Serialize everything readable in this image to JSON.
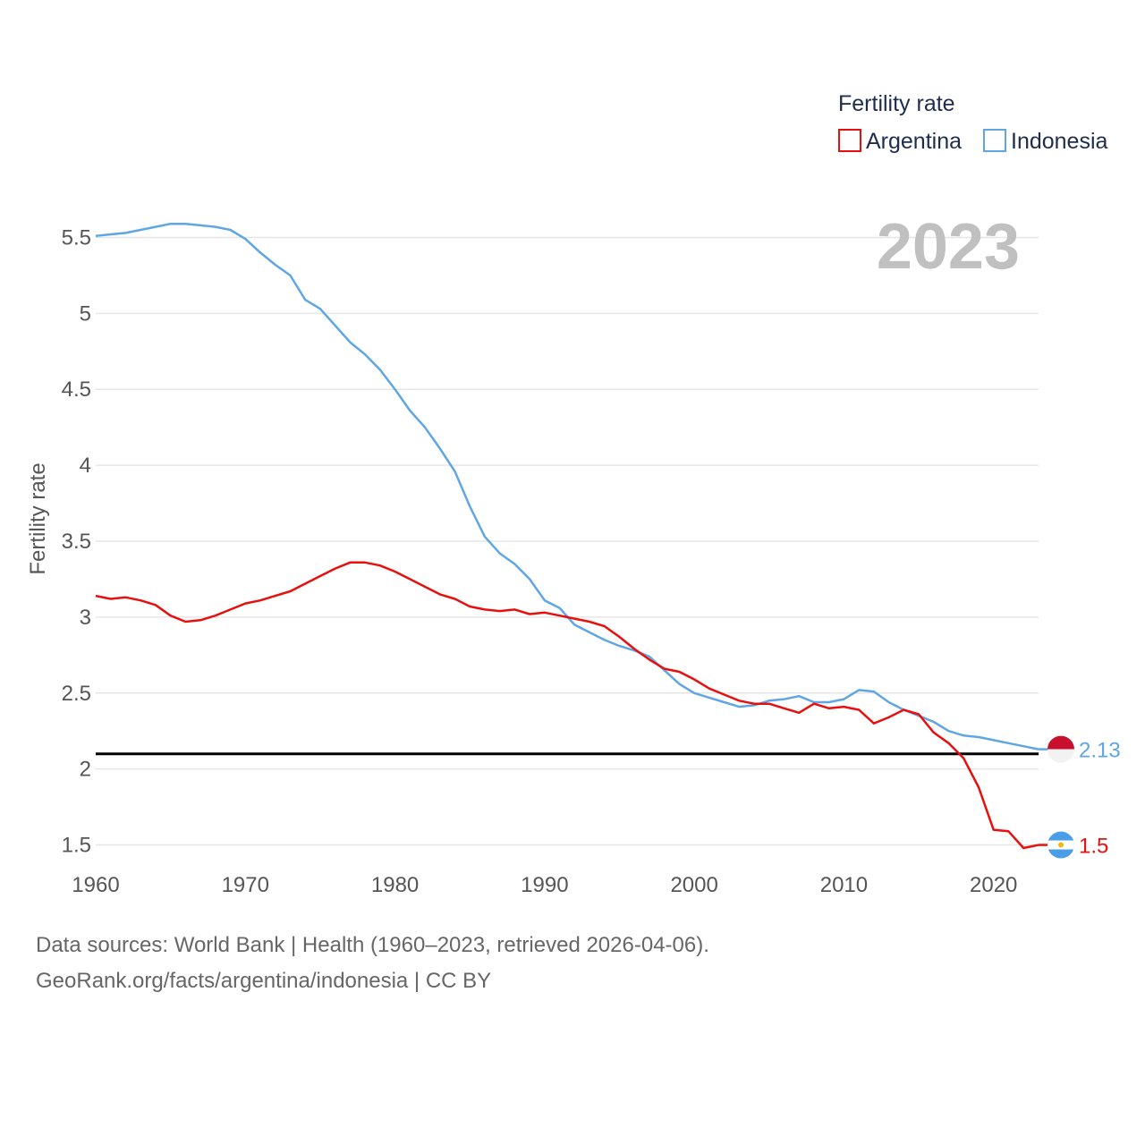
{
  "chart_data": {
    "type": "line",
    "ylabel": "Fertility rate",
    "xlabel": "",
    "xlim": [
      1960,
      2024.5
    ],
    "ylim": [
      1.25,
      5.75
    ],
    "x_ticks": [
      1960,
      1970,
      1980,
      1990,
      2000,
      2010,
      2020
    ],
    "y_ticks": [
      1.5,
      2,
      2.5,
      3,
      3.5,
      4,
      4.5,
      5,
      5.5
    ],
    "y_tick_labels": [
      "1.5",
      "2",
      "2.5",
      "3",
      "3.5",
      "4",
      "4.5",
      "5",
      "5.5"
    ],
    "grid": true,
    "legend": {
      "title": "Fertility rate",
      "position": "top-right"
    },
    "year_label": "2023",
    "reference_line": {
      "y": 2.1,
      "color": "#000000"
    },
    "x": [
      1960,
      1961,
      1962,
      1963,
      1964,
      1965,
      1966,
      1967,
      1968,
      1969,
      1970,
      1971,
      1972,
      1973,
      1974,
      1975,
      1976,
      1977,
      1978,
      1979,
      1980,
      1981,
      1982,
      1983,
      1984,
      1985,
      1986,
      1987,
      1988,
      1989,
      1990,
      1991,
      1992,
      1993,
      1994,
      1995,
      1996,
      1997,
      1998,
      1999,
      2000,
      2001,
      2002,
      2003,
      2004,
      2005,
      2006,
      2007,
      2008,
      2009,
      2010,
      2011,
      2012,
      2013,
      2014,
      2015,
      2016,
      2017,
      2018,
      2019,
      2020,
      2021,
      2022,
      2023
    ],
    "series": [
      {
        "name": "Argentina",
        "color": "#e8100f",
        "end_label": "1.5",
        "flag": "argentina-flag",
        "values": [
          3.14,
          3.12,
          3.13,
          3.11,
          3.08,
          3.01,
          2.97,
          2.98,
          3.01,
          3.05,
          3.09,
          3.11,
          3.14,
          3.17,
          3.22,
          3.27,
          3.32,
          3.36,
          3.36,
          3.34,
          3.3,
          3.25,
          3.2,
          3.15,
          3.12,
          3.07,
          3.05,
          3.04,
          3.05,
          3.02,
          3.03,
          3.01,
          2.99,
          2.97,
          2.94,
          2.87,
          2.79,
          2.72,
          2.66,
          2.64,
          2.59,
          2.53,
          2.49,
          2.45,
          2.43,
          2.43,
          2.4,
          2.37,
          2.43,
          2.4,
          2.41,
          2.39,
          2.3,
          2.34,
          2.39,
          2.36,
          2.24,
          2.17,
          2.07,
          1.88,
          1.6,
          1.59,
          1.48,
          1.5
        ]
      },
      {
        "name": "Indonesia",
        "color": "#5fa6e6",
        "end_label": "2.13",
        "flag": "indonesia-flag",
        "values": [
          5.51,
          5.52,
          5.53,
          5.55,
          5.57,
          5.59,
          5.59,
          5.58,
          5.57,
          5.55,
          5.49,
          5.4,
          5.32,
          5.25,
          5.09,
          5.03,
          4.92,
          4.81,
          4.73,
          4.63,
          4.5,
          4.36,
          4.25,
          4.11,
          3.96,
          3.73,
          3.53,
          3.42,
          3.35,
          3.25,
          3.11,
          3.06,
          2.95,
          2.9,
          2.85,
          2.81,
          2.78,
          2.74,
          2.65,
          2.56,
          2.5,
          2.47,
          2.44,
          2.41,
          2.42,
          2.45,
          2.46,
          2.48,
          2.44,
          2.44,
          2.46,
          2.52,
          2.51,
          2.44,
          2.39,
          2.35,
          2.31,
          2.25,
          2.22,
          2.21,
          2.19,
          2.17,
          2.15,
          2.13
        ]
      }
    ]
  },
  "footer": {
    "line1": "Data sources: World Bank | Health (1960–2023, retrieved 2026-04-06).",
    "line2": "GeoRank.org/facts/argentina/indonesia | CC BY"
  }
}
